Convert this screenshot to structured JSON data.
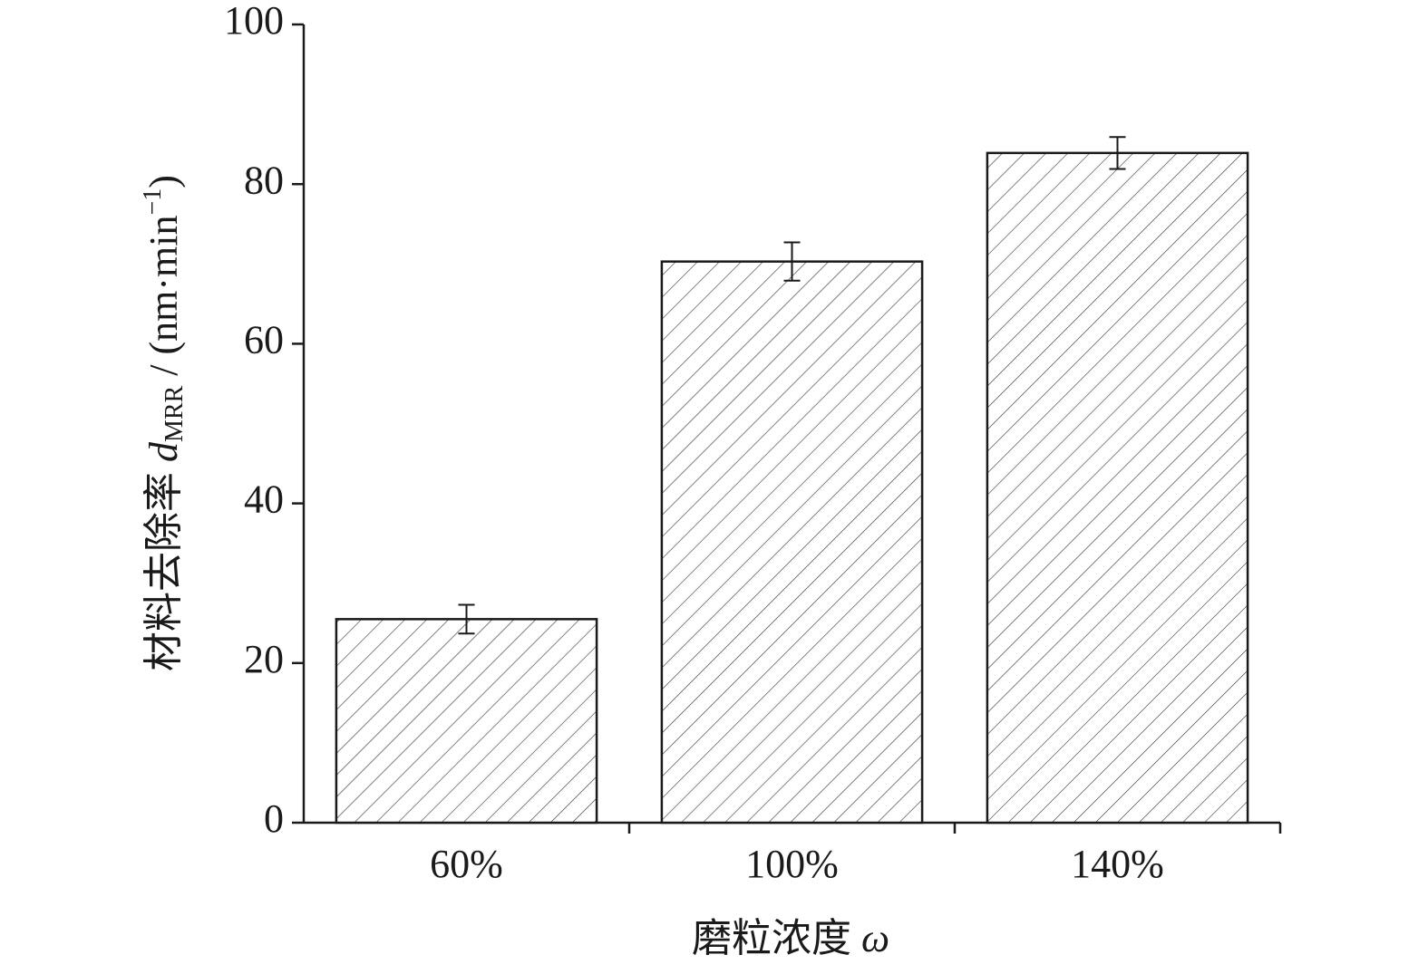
{
  "chart_data": {
    "type": "bar",
    "xlabel": {
      "text": "磨粒浓度 ",
      "symbol": "ω"
    },
    "ylabel": {
      "text": "材料去除率 ",
      "symbol": "d",
      "subscript": "MRR",
      "unit": " / (nm·min",
      "superscript": "−1",
      "close": ")"
    },
    "categories": [
      "60%",
      "100%",
      "140%"
    ],
    "values": [
      25.5,
      70.3,
      83.9
    ],
    "errors": [
      1.8,
      2.4,
      2.0
    ],
    "color": "#ffffff",
    "edgecolor": "#1a1a1a",
    "hatch": true,
    "ylim": [
      0,
      100
    ],
    "yticks": [
      0,
      20,
      40,
      60,
      80,
      100
    ],
    "grid": false
  }
}
